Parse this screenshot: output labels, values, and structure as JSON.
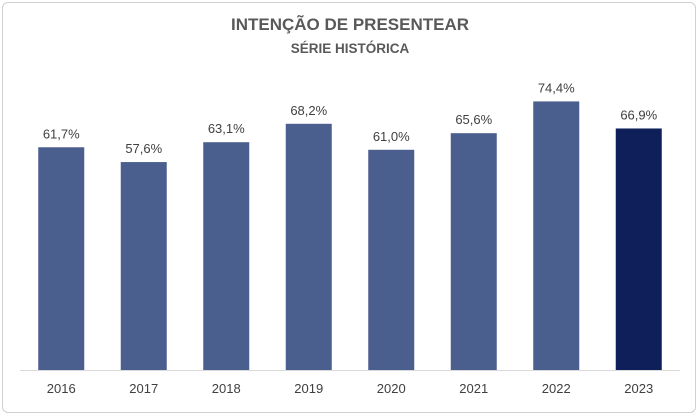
{
  "chart_data": {
    "type": "bar",
    "title": "INTENÇÃO DE PRESENTEAR",
    "subtitle": "SÉRIE HISTÓRICA",
    "categories": [
      "2016",
      "2017",
      "2018",
      "2019",
      "2020",
      "2021",
      "2022",
      "2023"
    ],
    "values": [
      61.7,
      57.6,
      63.1,
      68.2,
      61.0,
      65.6,
      74.4,
      66.9
    ],
    "value_labels": [
      "61,7%",
      "57,6%",
      "63,1%",
      "68,2%",
      "61,0%",
      "65,6%",
      "74,4%",
      "66,9%"
    ],
    "xlabel": "",
    "ylabel": "",
    "ylim": [
      0,
      75
    ],
    "grid": false,
    "legend": "none",
    "colors": {
      "bar": "#4a5f8d",
      "highlight_bar": "#0f1f5a",
      "highlight_category": "2023",
      "axis": "#d9d9d9",
      "text": "#404040",
      "title": "#595959"
    }
  }
}
